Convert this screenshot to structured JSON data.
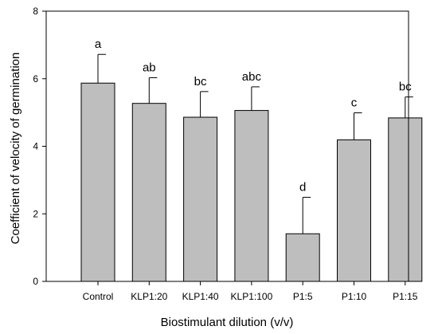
{
  "chart_data": {
    "type": "bar",
    "xlabel": "Biostimulant dilution (v/v)",
    "ylabel": "Coefficient of velocity of germination",
    "ylim": [
      0,
      8
    ],
    "yticks": [
      "0",
      "2",
      "4",
      "6",
      "8"
    ],
    "categories": [
      "Control",
      "KLP1:20",
      "KLP1:40",
      "KLP1:100",
      "P1:5",
      "P1:10",
      "P1:15"
    ],
    "values": [
      5.87,
      5.27,
      4.86,
      5.06,
      1.41,
      4.19,
      4.84
    ],
    "errors": [
      0.85,
      0.76,
      0.76,
      0.7,
      1.08,
      0.8,
      0.62
    ],
    "significance": [
      "a",
      "ab",
      "bc",
      "abc",
      "d",
      "c",
      "bc"
    ],
    "bar_color": "#bebebe",
    "grid": false
  }
}
